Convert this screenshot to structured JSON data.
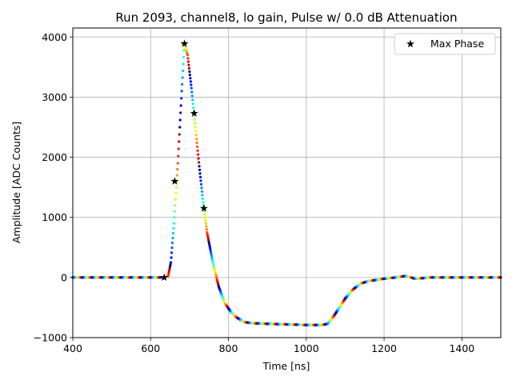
{
  "chart_data": {
    "type": "scatter",
    "title": "Run 2093, channel8, lo gain, Pulse w/ 0.0 dB Attenuation",
    "xlabel": "Time [ns]",
    "ylabel": "Amplitude [ADC Counts]",
    "xlim": [
      400,
      1500
    ],
    "ylim": [
      -1000,
      4150
    ],
    "xticks": [
      400,
      600,
      800,
      1000,
      1200,
      1400
    ],
    "yticks": [
      -1000,
      0,
      1000,
      2000,
      3000,
      4000
    ],
    "grid": true,
    "legend": {
      "position": "top-right",
      "entries": [
        "Max Phase"
      ]
    },
    "waveform": {
      "name": "pulse samples (color-cycled by phase)",
      "x": [
        400,
        630,
        645,
        652,
        660,
        670,
        680,
        687,
        695,
        705,
        715,
        725,
        735,
        745,
        760,
        775,
        790,
        805,
        820,
        840,
        860,
        900,
        950,
        1000,
        1040,
        1055,
        1070,
        1085,
        1100,
        1120,
        1140,
        1160,
        1180,
        1200,
        1230,
        1255,
        1280,
        1320,
        1400,
        1500
      ],
      "y": [
        0,
        0,
        20,
        250,
        900,
        1900,
        3100,
        3890,
        3700,
        3150,
        2500,
        1850,
        1250,
        750,
        250,
        -150,
        -420,
        -560,
        -660,
        -740,
        -760,
        -770,
        -780,
        -790,
        -790,
        -770,
        -650,
        -500,
        -350,
        -200,
        -100,
        -60,
        -40,
        -20,
        0,
        25,
        -20,
        0,
        0,
        0
      ]
    },
    "max_phase": {
      "name": "Max Phase",
      "marker": "star",
      "color": "#000000",
      "x": [
        635,
        662,
        687,
        712,
        737
      ],
      "y": [
        0,
        1600,
        3890,
        2730,
        1150
      ]
    },
    "colormap": "jet"
  }
}
